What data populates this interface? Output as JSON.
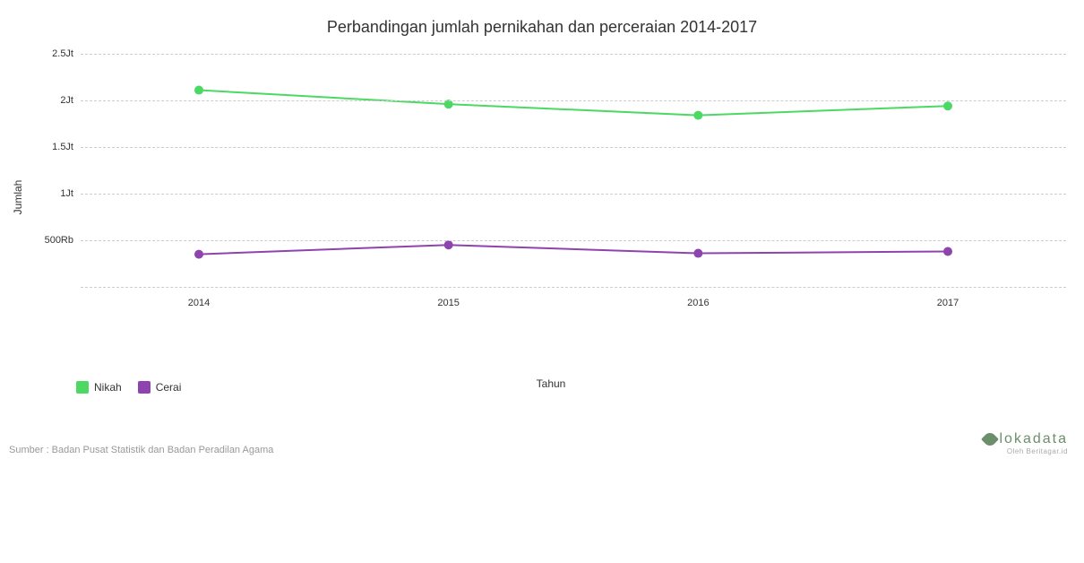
{
  "chart": {
    "type": "line",
    "title": "Perbandingan jumlah pernikahan dan perceraian 2014-2017",
    "xlabel": "Tahun",
    "ylabel": "Jumlah",
    "background_color": "#ffffff",
    "grid_color": "#cccccc",
    "title_fontsize": 18,
    "label_fontsize": 12,
    "tick_fontsize": 11,
    "ylim": [
      0,
      2500000
    ],
    "ytick_step": 500000,
    "ytick_labels": [
      "500Rb",
      "1Jt",
      "1.5Jt",
      "2Jt",
      "2.5Jt"
    ],
    "ytick_values": [
      500000,
      1000000,
      1500000,
      2000000,
      2500000
    ],
    "categories": [
      "2014",
      "2015",
      "2016",
      "2017"
    ],
    "series": [
      {
        "name": "Nikah",
        "color": "#4bd964",
        "line_width": 2,
        "marker_radius": 5,
        "values": [
          2110000,
          1960000,
          1840000,
          1940000
        ]
      },
      {
        "name": "Cerai",
        "color": "#8e44ad",
        "line_width": 2,
        "marker_radius": 5,
        "values": [
          350000,
          450000,
          360000,
          380000
        ]
      }
    ],
    "legend_position": "bottom-left"
  },
  "source_text": "Sumber : Badan Pusat Statistik dan Badan Peradilan Agama",
  "brand": {
    "name": "lokadata",
    "sub": "Oleh Beritagar.id",
    "color": "#6b8e6b"
  }
}
